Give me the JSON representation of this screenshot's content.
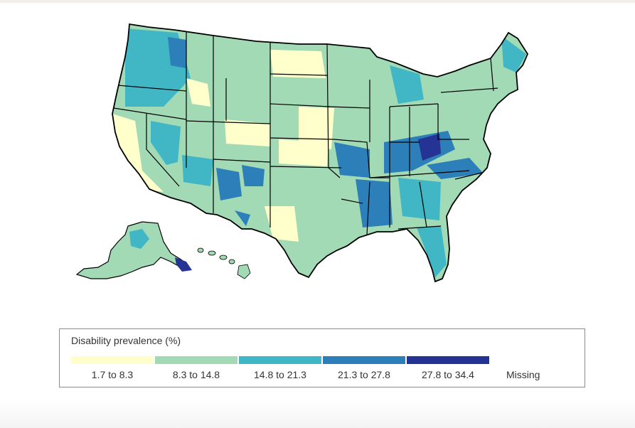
{
  "legend": {
    "title": "Disability prevalence (%)",
    "bins": [
      {
        "label": "1.7 to 8.3",
        "color": "#ffffcc"
      },
      {
        "label": "8.3 to 14.8",
        "color": "#a1dab4"
      },
      {
        "label": "14.8 to 21.3",
        "color": "#41b6c4"
      },
      {
        "label": "21.3 to 27.8",
        "color": "#2c7fb8"
      },
      {
        "label": "27.8 to 34.4",
        "color": "#253494"
      }
    ],
    "missing_label": "Missing"
  },
  "map": {
    "border_color": "#000000"
  }
}
